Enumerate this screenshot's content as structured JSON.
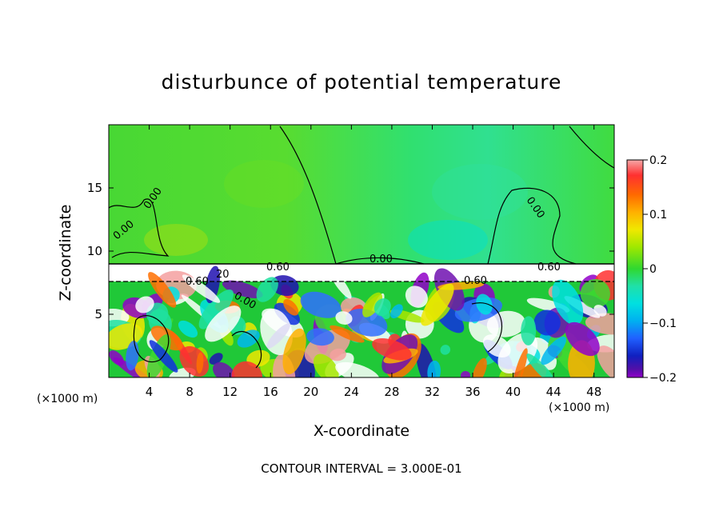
{
  "title": "disturbunce of potential temperature",
  "footer": "CONTOUR INTERVAL = 3.000E-01",
  "chart_data": {
    "type": "heatmap",
    "title": "disturbunce of potential temperature",
    "xlabel": "X-coordinate",
    "ylabel": "Z-coordinate",
    "x_unit": "(×1000 m)",
    "xlim": [
      0,
      50
    ],
    "ylim": [
      0,
      20
    ],
    "x_ticks": [
      4,
      8,
      12,
      16,
      20,
      24,
      28,
      32,
      36,
      40,
      44,
      48
    ],
    "y_ticks": [
      5,
      10,
      15
    ],
    "colorbar": {
      "range": [
        -0.2,
        0.2
      ],
      "ticks": [
        "0.2",
        "0.1",
        "0",
        "−0.1",
        "−0.2"
      ],
      "colors": [
        "#f4a0a0",
        "#ff3030",
        "#ff7000",
        "#ffb000",
        "#f0e800",
        "#a8e800",
        "#40d830",
        "#20e0a0",
        "#00e0e0",
        "#00b8f0",
        "#3070ff",
        "#1030e0",
        "#2010b0",
        "#7010b0",
        "#9000c8"
      ]
    },
    "contour_labels": [
      "0.00",
      "0.00",
      "0.00",
      "0.00",
      "0.60",
      "0.60",
      "0.60",
      "0.60",
      "20",
      "0.00"
    ],
    "contour_interval": "3.000E-01"
  }
}
